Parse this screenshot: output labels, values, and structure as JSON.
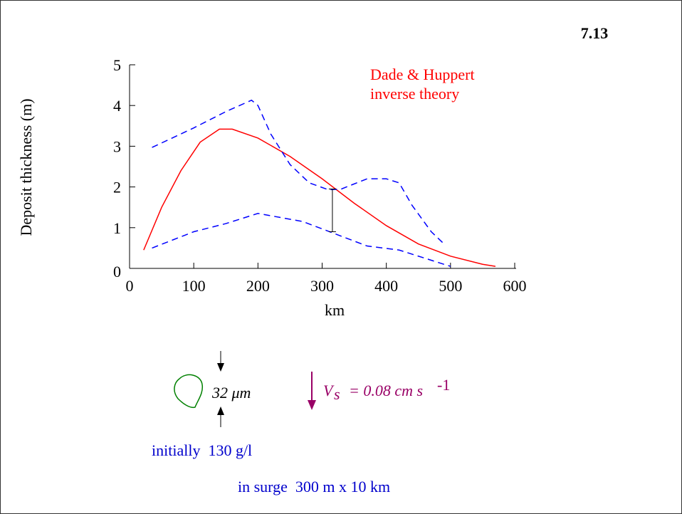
{
  "slide_number": "7.13",
  "chart_data": {
    "type": "line",
    "xlabel": "km",
    "ylabel": "Deposit thickness (m)",
    "xlim": [
      0,
      600
    ],
    "xticks": [
      0,
      100,
      200,
      300,
      400,
      500,
      600
    ],
    "ylim": [
      0,
      5
    ],
    "yticks": [
      0,
      1,
      2,
      3,
      4,
      5
    ],
    "annotation": [
      "Dade & Huppert",
      "inverse theory"
    ],
    "annotation_color": "#ff0000",
    "series": [
      {
        "color": "#ff0000",
        "dash": false,
        "x": [
          22,
          50,
          80,
          110,
          140,
          160,
          200,
          250,
          300,
          350,
          400,
          450,
          500,
          550,
          570
        ],
        "values": [
          0.45,
          1.5,
          2.4,
          3.1,
          3.42,
          3.42,
          3.2,
          2.75,
          2.2,
          1.6,
          1.05,
          0.6,
          0.3,
          0.1,
          0.05
        ]
      },
      {
        "color": "#0000ff",
        "dash": true,
        "x": [
          35,
          100,
          150,
          190,
          200,
          220,
          250,
          280,
          310,
          330,
          370,
          400,
          420,
          440,
          470,
          490
        ],
        "values": [
          2.97,
          3.45,
          3.85,
          4.13,
          4.0,
          3.3,
          2.55,
          2.1,
          1.93,
          1.95,
          2.2,
          2.2,
          2.1,
          1.55,
          0.9,
          0.6
        ]
      },
      {
        "color": "#0000ff",
        "dash": true,
        "x": [
          35,
          100,
          150,
          200,
          270,
          320,
          370,
          420,
          460,
          500
        ],
        "values": [
          0.5,
          0.9,
          1.1,
          1.35,
          1.15,
          0.85,
          0.55,
          0.45,
          0.25,
          0.05
        ]
      }
    ],
    "error_bar": {
      "x": 316,
      "low": 0.9,
      "high": 1.95
    }
  },
  "particle": {
    "size": "32 μm",
    "velocity_symbol": "V",
    "velocity_subscript": "s",
    "velocity_value": "= 0.08 cm s",
    "velocity_exponent": "-1"
  },
  "notes": [
    "initially  130 g/l",
    "in surge  300 m x 10 km"
  ]
}
